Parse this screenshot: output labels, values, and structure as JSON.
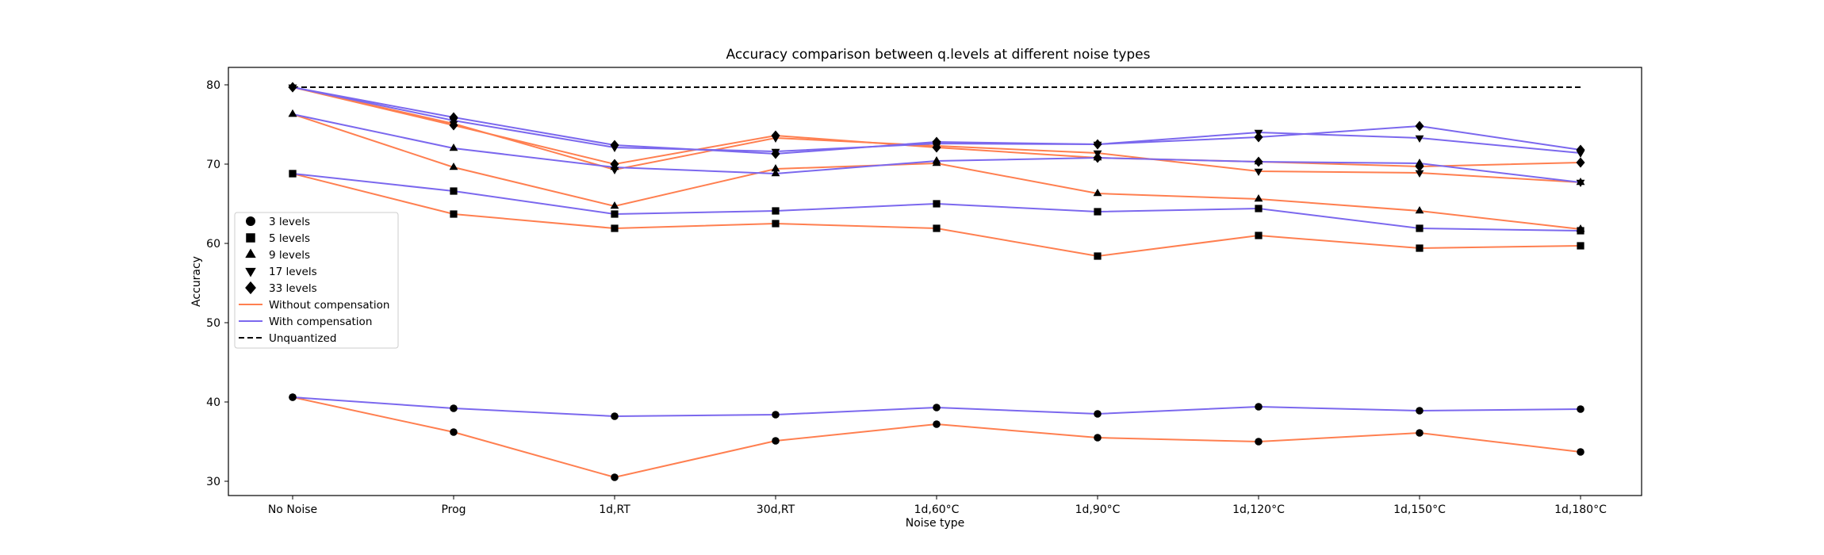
{
  "chart_data": {
    "type": "line",
    "title": "Accuracy comparison between q.levels at different noise types",
    "xlabel": "Noise type",
    "ylabel": "Accuracy",
    "categories": [
      "No Noise",
      "Prog",
      "1d,RT",
      "30d,RT",
      "1d,60°C",
      "1d,90°C",
      "1d,120°C",
      "1d,150°C",
      "1d,180°C"
    ],
    "ylim": [
      28.2,
      82.2
    ],
    "yticks": [
      30,
      40,
      50,
      60,
      70,
      80
    ],
    "grid": false,
    "legend": {
      "placement": "center-left",
      "entries": [
        {
          "label": "3 levels",
          "kind": "marker",
          "marker": "circle"
        },
        {
          "label": "5 levels",
          "kind": "marker",
          "marker": "square"
        },
        {
          "label": "9 levels",
          "kind": "marker",
          "marker": "triangle-up"
        },
        {
          "label": "17 levels",
          "kind": "marker",
          "marker": "triangle-down"
        },
        {
          "label": "33 levels",
          "kind": "marker",
          "marker": "diamond"
        },
        {
          "label": "Without compensation",
          "kind": "line",
          "color": "#ff7f50"
        },
        {
          "label": "With compensation",
          "kind": "line",
          "color": "#7b68ee"
        },
        {
          "label": "Unquantized",
          "kind": "dashed",
          "color": "#000000"
        }
      ]
    },
    "colors": {
      "without": "#ff7f50",
      "with": "#7b68ee",
      "unquantized": "#000000",
      "marker": "#000000"
    },
    "unquantized": 79.7,
    "series": [
      {
        "levels": "3 levels",
        "marker": "circle",
        "compensation": "without",
        "values": [
          40.6,
          36.2,
          30.5,
          35.1,
          37.2,
          35.5,
          35.0,
          36.1,
          33.7
        ]
      },
      {
        "levels": "3 levels",
        "marker": "circle",
        "compensation": "with",
        "values": [
          40.6,
          39.2,
          38.2,
          38.4,
          39.3,
          38.5,
          39.4,
          38.9,
          39.1
        ]
      },
      {
        "levels": "5 levels",
        "marker": "square",
        "compensation": "without",
        "values": [
          68.8,
          63.7,
          61.9,
          62.5,
          61.9,
          58.4,
          61.0,
          59.4,
          59.7
        ]
      },
      {
        "levels": "5 levels",
        "marker": "square",
        "compensation": "with",
        "values": [
          68.8,
          66.6,
          63.7,
          64.1,
          65.0,
          64.0,
          64.4,
          61.9,
          61.6
        ]
      },
      {
        "levels": "9 levels",
        "marker": "triangle-up",
        "compensation": "without",
        "values": [
          76.3,
          69.6,
          64.7,
          69.4,
          70.1,
          66.3,
          65.6,
          64.1,
          61.8
        ]
      },
      {
        "levels": "9 levels",
        "marker": "triangle-up",
        "compensation": "with",
        "values": [
          76.3,
          72.0,
          69.6,
          68.8,
          70.4,
          70.8,
          70.3,
          70.1,
          67.7
        ]
      },
      {
        "levels": "17 levels",
        "marker": "triangle-down",
        "compensation": "without",
        "values": [
          79.7,
          75.1,
          69.3,
          73.3,
          72.3,
          71.4,
          69.1,
          68.9,
          67.7
        ]
      },
      {
        "levels": "17 levels",
        "marker": "triangle-down",
        "compensation": "with",
        "values": [
          79.7,
          75.5,
          72.1,
          71.6,
          72.6,
          72.5,
          74.0,
          73.3,
          71.4
        ]
      },
      {
        "levels": "33 levels",
        "marker": "diamond",
        "compensation": "without",
        "values": [
          79.7,
          74.9,
          70.0,
          73.6,
          72.1,
          70.8,
          70.3,
          69.7,
          70.2
        ]
      },
      {
        "levels": "33 levels",
        "marker": "diamond",
        "compensation": "with",
        "values": [
          79.7,
          75.9,
          72.4,
          71.3,
          72.8,
          72.5,
          73.4,
          74.8,
          71.8
        ]
      }
    ]
  }
}
